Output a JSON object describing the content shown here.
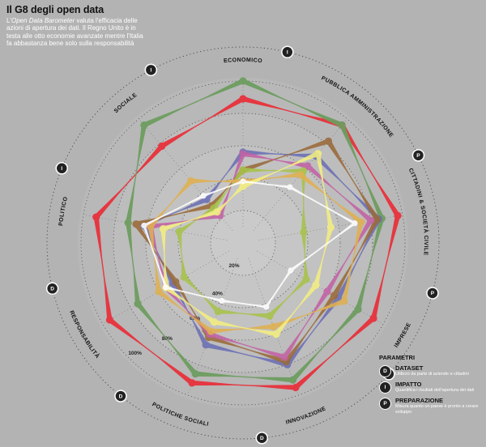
{
  "header": {
    "title": "Il G8 degli open data",
    "subtitle_lead": "L'",
    "subtitle_em": "Open Data Barometer",
    "subtitle_rest": " valuta l'efficacia delle azioni di apertura dei dati. Il Regno Unito è in testa alle otto economie avanzate mentre l'Italia fa abbastanza bene solo sulla responsabilità"
  },
  "legend": {
    "title": "PARAMETRI",
    "items": [
      {
        "badge": "D",
        "title": "DATASET",
        "desc": "Utilizzo da parte di aziende e cittadini"
      },
      {
        "badge": "I",
        "title": "IMPATTO",
        "desc": "Quantifica i risultati dell'apertura dei dati"
      },
      {
        "badge": "P",
        "title": "PREPARAZIONE",
        "desc": "Misura quanto un paese è pronto a creare sviluppo"
      }
    ]
  },
  "chart_data": {
    "type": "radar",
    "axes": [
      {
        "label": "ECONOMICO",
        "badge": "I"
      },
      {
        "label": "PUBBLICA AMMINISTRAZIONE",
        "badge": "P"
      },
      {
        "label": "CITTADINI & SOCIETÀ CIVILE",
        "badge": "P"
      },
      {
        "label": "IMPRESE",
        "badge": "P"
      },
      {
        "label": "INNOVAZIONE",
        "badge": "D"
      },
      {
        "label": "POLITICHE SOCIALI",
        "badge": "D"
      },
      {
        "label": "RESPONSABILITÀ",
        "badge": "D"
      },
      {
        "label": "POLITICO",
        "badge": "I"
      },
      {
        "label": "SOCIALE",
        "badge": "I"
      }
    ],
    "ring_values": [
      20,
      40,
      60,
      80,
      100
    ],
    "ring_labels": [
      "20%",
      "40%",
      "60%",
      "80%",
      "100%"
    ],
    "series": [
      {
        "color": "#e8323c",
        "values": [
          89,
          95,
          97,
          93,
          95,
          92,
          95,
          92,
          78
        ]
      },
      {
        "color": "#6e9d60",
        "values": [
          100,
          95,
          87,
          82,
          90,
          86,
          75,
          72,
          95
        ]
      },
      {
        "color": "#6b6fb5",
        "values": [
          56,
          70,
          85,
          68,
          80,
          67,
          50,
          62,
          35
        ]
      },
      {
        "color": "#9a6a3a",
        "values": [
          45,
          82,
          84,
          65,
          78,
          62,
          48,
          67,
          30
        ]
      },
      {
        "color": "#c262a5",
        "values": [
          55,
          62,
          80,
          60,
          75,
          60,
          55,
          58,
          22
        ]
      },
      {
        "color": "#a7c34a",
        "values": [
          45,
          58,
          38,
          45,
          48,
          45,
          42,
          40,
          28
        ]
      },
      {
        "color": "#e0b050",
        "values": [
          38,
          55,
          74,
          72,
          55,
          58,
          60,
          58,
          50
        ]
      },
      {
        "color": "#f4ef82",
        "values": [
          35,
          72,
          55,
          52,
          60,
          52,
          55,
          50,
          25
        ]
      },
      {
        "color": "#ffffff",
        "values": [
          38,
          45,
          70,
          34,
          42,
          38,
          55,
          62,
          38
        ]
      }
    ]
  }
}
